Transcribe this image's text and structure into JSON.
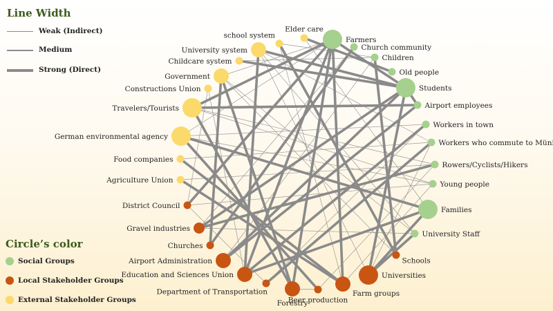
{
  "legend": {
    "line_width_title": "Line Width",
    "line_items": [
      "Weak (Indirect)",
      "Medium",
      "Strong (Direct)"
    ],
    "color_title": "Circle’s color",
    "color_items": [
      {
        "label": "Social Groups",
        "color": "#a6d08e"
      },
      {
        "label": "Local Stakeholder Groups",
        "color": "#c85512"
      },
      {
        "label": "External Stakeholder Groups",
        "color": "#fbd96a"
      }
    ]
  },
  "colors": {
    "social": "#a6d08e",
    "local": "#c85512",
    "external": "#fbd96a",
    "edge": "#8a8a8a"
  },
  "nodes": [
    {
      "id": "farmers",
      "label": "Farmers",
      "group": "social",
      "size": "large"
    },
    {
      "id": "church",
      "label": "Church community",
      "group": "social",
      "size": "small"
    },
    {
      "id": "children",
      "label": "Children",
      "group": "social",
      "size": "small"
    },
    {
      "id": "old",
      "label": "Old people",
      "group": "social",
      "size": "small"
    },
    {
      "id": "students",
      "label": "Students",
      "group": "social",
      "size": "large"
    },
    {
      "id": "airportemp",
      "label": "Airport employees",
      "group": "social",
      "size": "small"
    },
    {
      "id": "workerstown",
      "label": "Workers in town",
      "group": "social",
      "size": "small"
    },
    {
      "id": "commuters",
      "label": "Workers who commute to Münich",
      "group": "social",
      "size": "small"
    },
    {
      "id": "rowers",
      "label": "Rowers/Cyclists/Hikers",
      "group": "social",
      "size": "small"
    },
    {
      "id": "young",
      "label": "Young people",
      "group": "social",
      "size": "small"
    },
    {
      "id": "families",
      "label": "Families",
      "group": "social",
      "size": "large"
    },
    {
      "id": "unistaff",
      "label": "University Staff",
      "group": "social",
      "size": "small"
    },
    {
      "id": "schools",
      "label": "Schools",
      "group": "local",
      "size": "small"
    },
    {
      "id": "universities",
      "label": "Universities",
      "group": "local",
      "size": "large"
    },
    {
      "id": "farmgroups",
      "label": "Farm groups",
      "group": "local",
      "size": "medium"
    },
    {
      "id": "beer",
      "label": "Beer production",
      "group": "local",
      "size": "small"
    },
    {
      "id": "forestry",
      "label": "Forestry",
      "group": "local",
      "size": "medium"
    },
    {
      "id": "transport",
      "label": "Department of Transportation",
      "group": "local",
      "size": "small"
    },
    {
      "id": "education",
      "label": "Education and Sciences Union",
      "group": "local",
      "size": "medium"
    },
    {
      "id": "airportadmin",
      "label": "Airport Administration",
      "group": "local",
      "size": "medium"
    },
    {
      "id": "churches",
      "label": "Churches",
      "group": "local",
      "size": "small"
    },
    {
      "id": "gravel",
      "label": "Gravel industries",
      "group": "local",
      "size": "smallmed"
    },
    {
      "id": "district",
      "label": "District Council",
      "group": "local",
      "size": "small"
    },
    {
      "id": "agriunion",
      "label": "Agriculture Union",
      "group": "external",
      "size": "small"
    },
    {
      "id": "food",
      "label": "Food companies",
      "group": "external",
      "size": "small"
    },
    {
      "id": "german",
      "label": "German environmental agency",
      "group": "external",
      "size": "large"
    },
    {
      "id": "travelers",
      "label": "Travelers/Tourists",
      "group": "external",
      "size": "large"
    },
    {
      "id": "construnion",
      "label": "Constructions Union",
      "group": "external",
      "size": "small"
    },
    {
      "id": "government",
      "label": "Government",
      "group": "external",
      "size": "medium"
    },
    {
      "id": "childcare",
      "label": "Childcare system",
      "group": "external",
      "size": "small"
    },
    {
      "id": "unisystem",
      "label": "University system",
      "group": "external",
      "size": "medium"
    },
    {
      "id": "schoolsystem",
      "label": "school system",
      "group": "external",
      "size": "small"
    },
    {
      "id": "eldercare",
      "label": "Elder care",
      "group": "external",
      "size": "small"
    }
  ],
  "edges": [
    [
      "farmers",
      "forestry",
      3
    ],
    [
      "farmers",
      "farmgroups",
      3
    ],
    [
      "farmers",
      "district",
      3
    ],
    [
      "farmers",
      "students",
      3
    ],
    [
      "farmers",
      "travelers",
      3
    ],
    [
      "farmers",
      "education",
      3
    ],
    [
      "students",
      "unisystem",
      3
    ],
    [
      "students",
      "universities",
      3
    ],
    [
      "students",
      "gravel",
      3
    ],
    [
      "students",
      "airportadmin",
      3
    ],
    [
      "students",
      "airportemp",
      3
    ],
    [
      "students",
      "childcare",
      3
    ],
    [
      "travelers",
      "airportemp",
      3
    ],
    [
      "travelers",
      "forestry",
      3
    ],
    [
      "travelers",
      "rowers",
      1
    ],
    [
      "german",
      "families",
      3
    ],
    [
      "german",
      "beer",
      3
    ],
    [
      "german",
      "young",
      1
    ],
    [
      "german",
      "workerstown",
      1
    ],
    [
      "government",
      "forestry",
      3
    ],
    [
      "government",
      "churches",
      3
    ],
    [
      "government",
      "farmers",
      1
    ],
    [
      "unisystem",
      "education",
      3
    ],
    [
      "unisystem",
      "universities",
      1
    ],
    [
      "unisystem",
      "commuters",
      1
    ],
    [
      "church",
      "churches",
      3
    ],
    [
      "children",
      "schools",
      3
    ],
    [
      "children",
      "schoolsystem",
      1
    ],
    [
      "old",
      "eldercare",
      3
    ],
    [
      "families",
      "education",
      3
    ],
    [
      "families",
      "universities",
      3
    ],
    [
      "rowers",
      "gravel",
      3
    ],
    [
      "food",
      "farmgroups",
      3
    ],
    [
      "agriunion",
      "farmgroups",
      3
    ],
    [
      "agriunion",
      "rowers",
      1
    ],
    [
      "district",
      "transport",
      1
    ],
    [
      "district",
      "young",
      1
    ],
    [
      "schoolsystem",
      "schools",
      3
    ],
    [
      "schoolsystem",
      "farmgroups",
      1
    ],
    [
      "eldercare",
      "families",
      1
    ],
    [
      "childcare",
      "children",
      1
    ],
    [
      "workerstown",
      "education",
      3
    ],
    [
      "workerstown",
      "transport",
      1
    ],
    [
      "commuters",
      "transport",
      3
    ],
    [
      "airportemp",
      "airportadmin",
      3
    ],
    [
      "unistaff",
      "universities",
      3
    ],
    [
      "unistaff",
      "unisystem",
      1
    ],
    [
      "unistaff",
      "gravel",
      1
    ],
    [
      "beer",
      "forestry",
      1
    ],
    [
      "construnion",
      "education",
      1
    ],
    [
      "construnion",
      "district",
      1
    ],
    [
      "food",
      "commuters",
      1
    ],
    [
      "german",
      "farmers",
      1
    ],
    [
      "government",
      "unistaff",
      1
    ],
    [
      "government",
      "schools",
      1
    ],
    [
      "travelers",
      "young",
      1
    ],
    [
      "church",
      "gravel",
      1
    ],
    [
      "children",
      "airportadmin",
      1
    ],
    [
      "young",
      "farmgroups",
      1
    ],
    [
      "rowers",
      "beer",
      1
    ],
    [
      "commuters",
      "universities",
      1
    ]
  ]
}
